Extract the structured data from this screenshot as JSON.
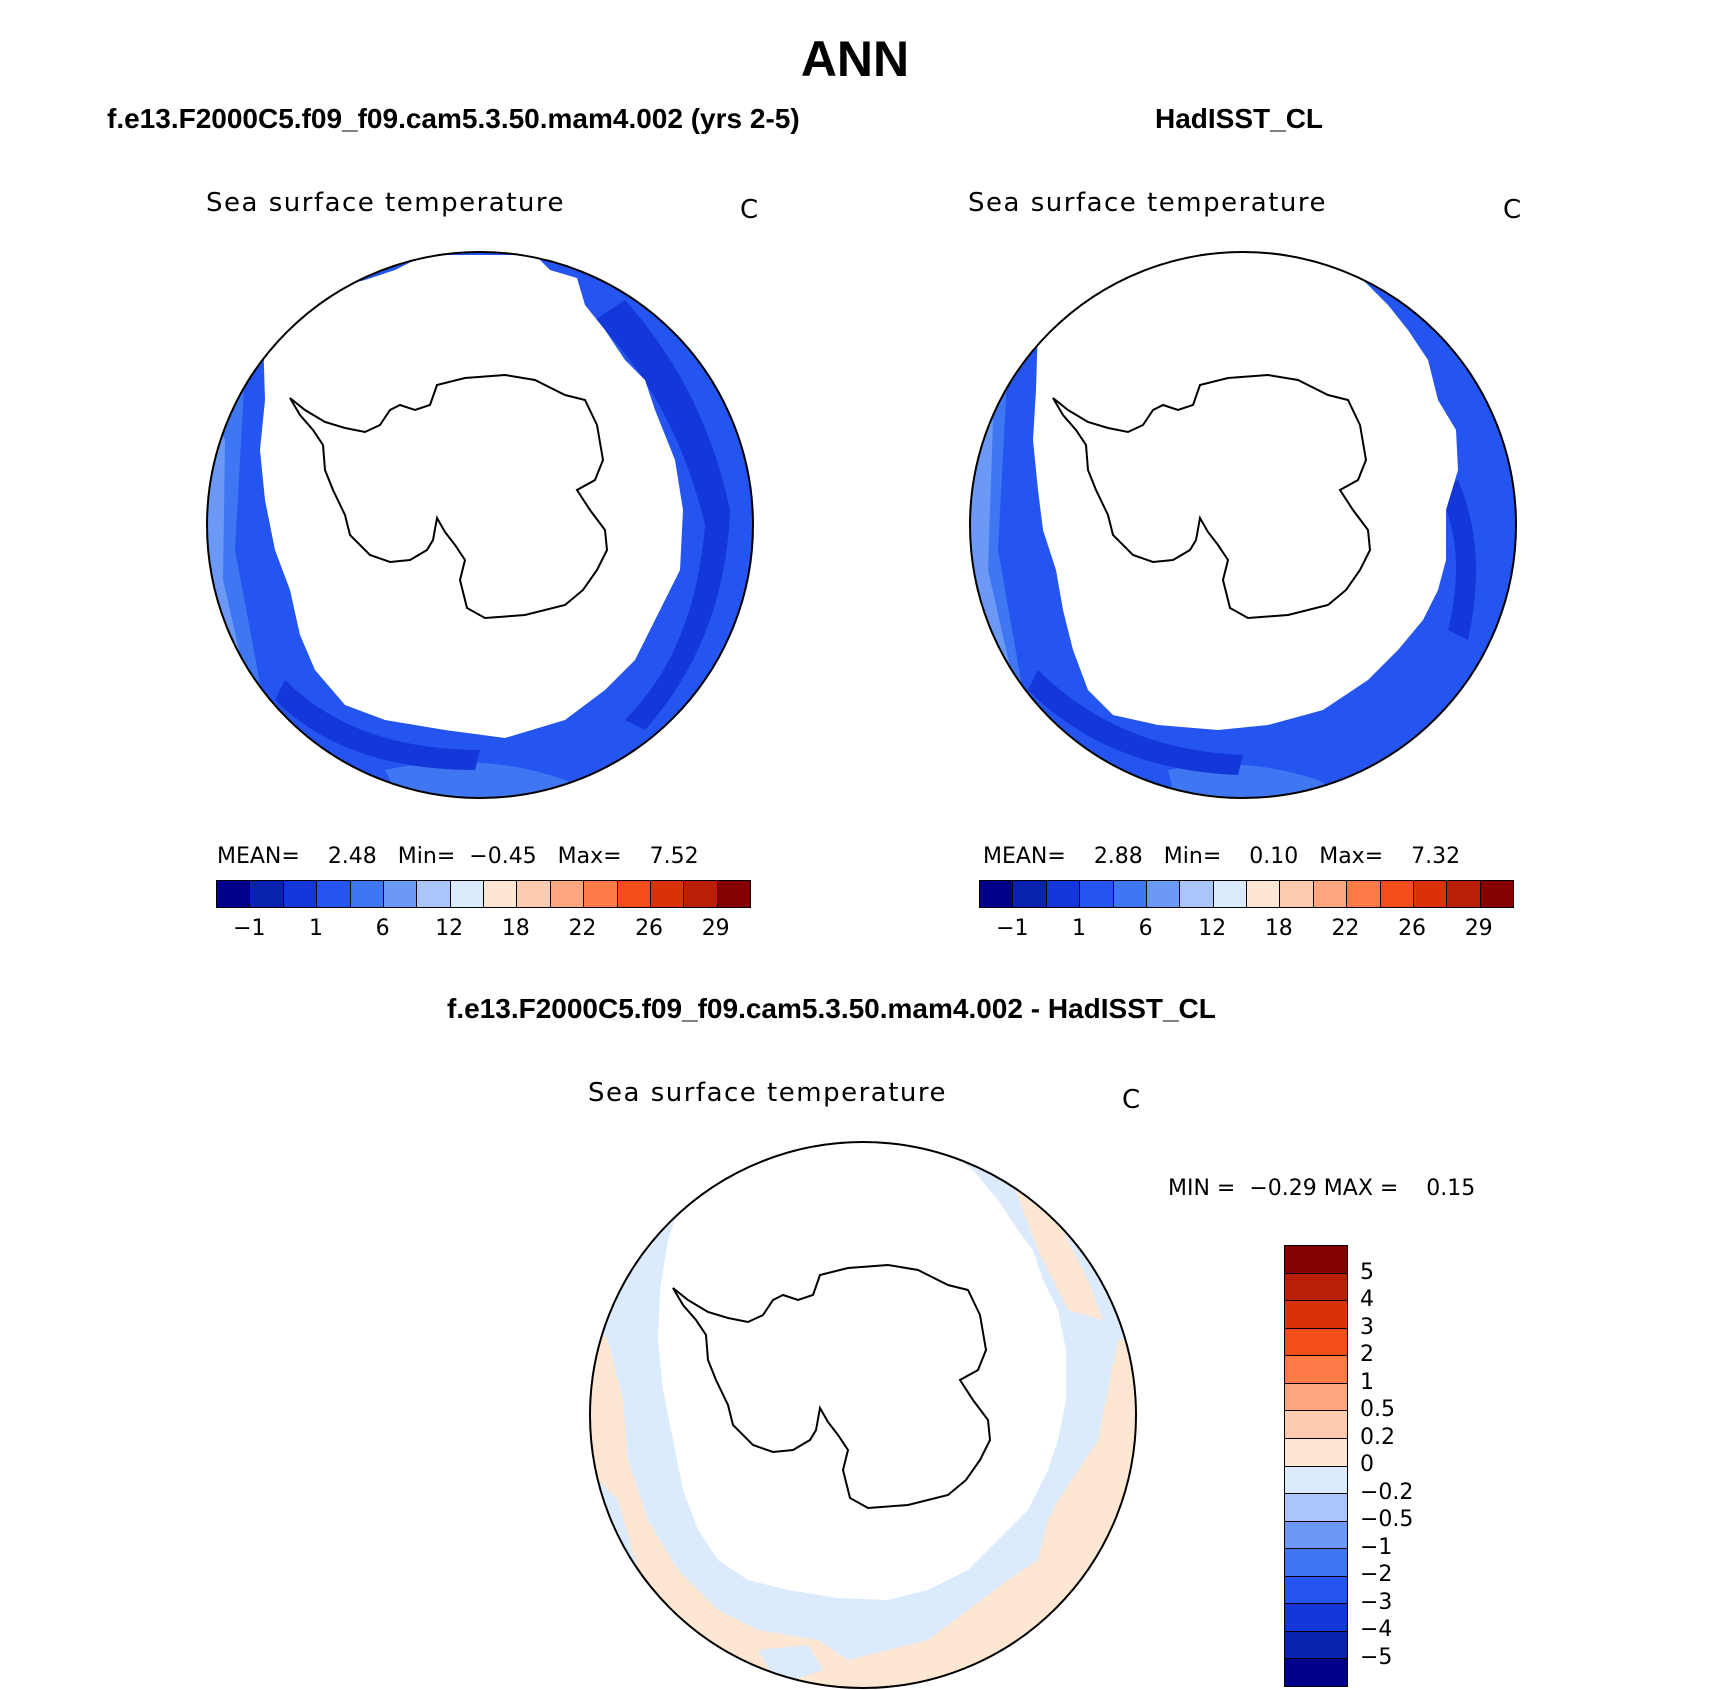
{
  "figure": {
    "title": "ANN",
    "panels": [
      {
        "case_title": "f.e13.F2000C5.f09_f09.cam5.3.50.mam4.002 (yrs 2-5)",
        "variable": "Sea surface temperature",
        "unit": "C",
        "mean_label": "MEAN=",
        "mean": "2.48",
        "min_label": "Min=",
        "min": "−0.45",
        "max_label": "Max=",
        "max": "7.52"
      },
      {
        "case_title": "HadISST_CL",
        "variable": "Sea surface temperature",
        "unit": "C",
        "mean_label": "MEAN=",
        "mean": "2.88",
        "min_label": "Min=",
        "min": "0.10",
        "max_label": "Max=",
        "max": "7.32"
      }
    ],
    "diff_panel": {
      "case_title": "f.e13.F2000C5.f09_f09.cam5.3.50.mam4.002 - HadISST_CL",
      "variable": "Sea surface temperature",
      "unit": "C",
      "min_label": "MIN =",
      "min": "−0.29",
      "max_label": "MAX =",
      "max": "0.15"
    },
    "colorbar_abs": {
      "colors": [
        "#00008a",
        "#0a22b0",
        "#1337d8",
        "#2455f0",
        "#3f77f2",
        "#6c99f6",
        "#a8c6fb",
        "#dbeafc",
        "#fde7d2",
        "#fdcbb0",
        "#fca57e",
        "#fb7a45",
        "#f34e1a",
        "#db3108",
        "#b81f04",
        "#850000"
      ],
      "tick_labels": [
        "−1",
        "1",
        "6",
        "12",
        "18",
        "22",
        "26",
        "29"
      ]
    },
    "colorbar_diff": {
      "colors_top_to_bottom": [
        "#850000",
        "#b81f04",
        "#db3108",
        "#f34e1a",
        "#fb7a45",
        "#fca57e",
        "#fdcbb0",
        "#fde7d2",
        "#dbeafc",
        "#a8c6fb",
        "#6c99f6",
        "#3f77f2",
        "#2455f0",
        "#1337d8",
        "#0a22b0",
        "#00008a"
      ],
      "tick_labels": [
        "5",
        "4",
        "3",
        "2",
        "1",
        "0.5",
        "0.2",
        "0",
        "−0.2",
        "−0.5",
        "−1",
        "−2",
        "−3",
        "−4",
        "−5"
      ]
    }
  }
}
